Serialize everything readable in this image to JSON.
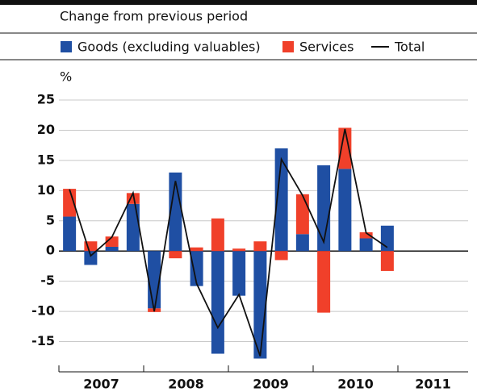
{
  "chart_data": {
    "type": "bar",
    "title": "Change from previous period",
    "y_unit": "%",
    "groups": [
      "2007",
      "2008",
      "2009",
      "2010",
      "2011"
    ],
    "categories": [
      null,
      null,
      null,
      null,
      null,
      null,
      null,
      null,
      null,
      null,
      null,
      null,
      null,
      null,
      null,
      null,
      null,
      null,
      null,
      null
    ],
    "series": [
      {
        "name": "Goods (excluding valuables)",
        "color": "#1f4fa3",
        "values": [
          5.7,
          -2.3,
          0.7,
          7.8,
          -9.5,
          13,
          -5.8,
          -17,
          -7.4,
          -17.8,
          17,
          2.8,
          14.2,
          13.6,
          2.1,
          4.2,
          null,
          null,
          null,
          null
        ]
      },
      {
        "name": "Services",
        "color": "#f0402a",
        "values": [
          4.6,
          1.6,
          1.7,
          1.8,
          -0.6,
          -1.2,
          0.6,
          5.4,
          0.4,
          1.6,
          -1.5,
          6.6,
          -10.2,
          6.8,
          1,
          -3.3,
          null,
          null,
          null,
          null
        ]
      },
      {
        "name": "Total",
        "type": "line",
        "color": "#111111",
        "values": [
          10.2,
          -0.8,
          2.3,
          9.6,
          -10,
          11.6,
          -5.4,
          -12.7,
          -7.2,
          -17.4,
          15.2,
          9.2,
          1.5,
          20.2,
          3,
          0.6,
          null,
          null,
          null,
          null
        ]
      }
    ],
    "ylim": [
      -20,
      25
    ],
    "yticks": [
      -15,
      -10,
      -5,
      0,
      5,
      10,
      15,
      20,
      25
    ],
    "grid": true
  }
}
